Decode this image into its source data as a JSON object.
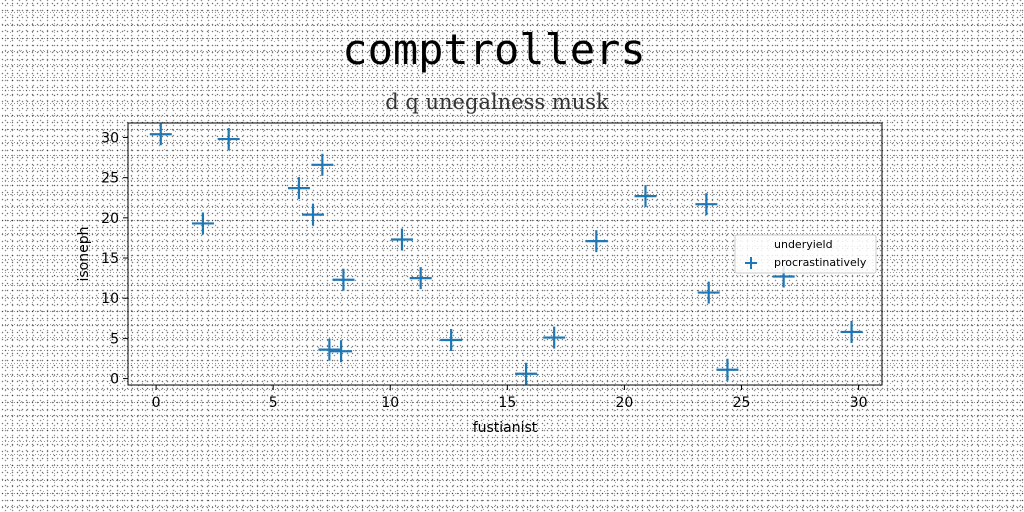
{
  "chart_data": {
    "type": "scatter",
    "title": "comptrollers",
    "subtitle": "d q unegalness musk",
    "xlabel": "fustianist",
    "ylabel": "isoneph",
    "xlim": [
      -1.2,
      31.0
    ],
    "ylim": [
      -0.8,
      31.8
    ],
    "xticks": [
      0,
      5,
      10,
      15,
      20,
      25,
      30
    ],
    "yticks": [
      0,
      5,
      10,
      15,
      20,
      25,
      30
    ],
    "grid": false,
    "legend": {
      "placement": "right",
      "entries": [
        "underyield",
        "procrastinatively"
      ]
    },
    "series": [
      {
        "name": "underyield",
        "marker": "none",
        "color": "#1f77b4",
        "points": []
      },
      {
        "name": "procrastinatively",
        "marker": "plus",
        "color": "#1f77b4",
        "points": [
          [
            0.2,
            30.4
          ],
          [
            3.1,
            29.8
          ],
          [
            2.0,
            19.3
          ],
          [
            6.1,
            23.7
          ],
          [
            6.7,
            20.4
          ],
          [
            7.1,
            26.6
          ],
          [
            8.0,
            12.3
          ],
          [
            7.4,
            3.6
          ],
          [
            7.9,
            3.4
          ],
          [
            10.5,
            17.3
          ],
          [
            11.3,
            12.5
          ],
          [
            12.6,
            4.8
          ],
          [
            15.8,
            0.6
          ],
          [
            17.0,
            5.1
          ],
          [
            18.8,
            17.1
          ],
          [
            20.9,
            22.7
          ],
          [
            23.5,
            21.7
          ],
          [
            23.6,
            10.7
          ],
          [
            24.4,
            1.1
          ],
          [
            26.8,
            12.7
          ],
          [
            29.7,
            5.8
          ]
        ]
      }
    ]
  }
}
